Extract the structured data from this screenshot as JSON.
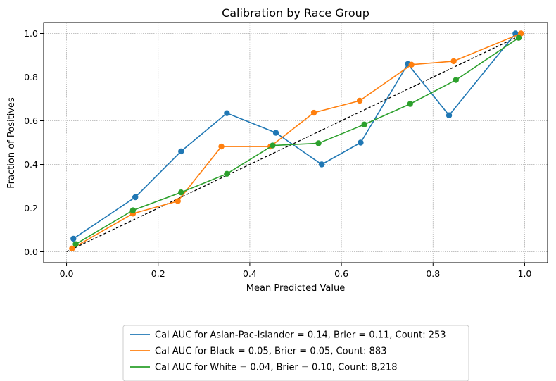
{
  "chart_data": {
    "type": "line",
    "title": "Calibration by Race Group",
    "xlabel": "Mean Predicted Value",
    "ylabel": "Fraction of Positives",
    "xlim": [
      -0.05,
      1.05
    ],
    "ylim": [
      -0.05,
      1.05
    ],
    "xticks": [
      0.0,
      0.2,
      0.4,
      0.6,
      0.8,
      1.0
    ],
    "yticks": [
      0.0,
      0.2,
      0.4,
      0.6,
      0.8,
      1.0
    ],
    "xtick_labels": [
      "0.0",
      "0.2",
      "0.4",
      "0.6",
      "0.8",
      "1.0"
    ],
    "ytick_labels": [
      "0.0",
      "0.2",
      "0.4",
      "0.6",
      "0.8",
      "1.0"
    ],
    "grid": true,
    "legend_position": "bottom-center",
    "reference_line": {
      "x": [
        0,
        1
      ],
      "y": [
        0,
        1
      ],
      "color": "#000000",
      "style": "dashed"
    },
    "series": [
      {
        "name": "Cal AUC for Asian-Pac-Islander = 0.14, Brier = 0.11, Count: 253",
        "color": "#1f77b4",
        "x": [
          0.015,
          0.15,
          0.25,
          0.35,
          0.457,
          0.557,
          0.642,
          0.745,
          0.835,
          0.98
        ],
        "y": [
          0.06,
          0.25,
          0.46,
          0.635,
          0.545,
          0.4,
          0.5,
          0.86,
          0.625,
          1.0
        ]
      },
      {
        "name": "Cal AUC for Black = 0.05, Brier = 0.05, Count: 883",
        "color": "#ff7f0e",
        "x": [
          0.012,
          0.145,
          0.243,
          0.338,
          0.445,
          0.54,
          0.64,
          0.753,
          0.845,
          0.992
        ],
        "y": [
          0.015,
          0.175,
          0.232,
          0.482,
          0.482,
          0.637,
          0.692,
          0.857,
          0.873,
          1.0
        ]
      },
      {
        "name": "Cal AUC for White = 0.04, Brier = 0.10, Count: 8,218",
        "color": "#2ca02c",
        "x": [
          0.02,
          0.145,
          0.25,
          0.35,
          0.45,
          0.55,
          0.65,
          0.75,
          0.85,
          0.987
        ],
        "y": [
          0.035,
          0.19,
          0.272,
          0.357,
          0.487,
          0.497,
          0.583,
          0.677,
          0.787,
          0.98
        ]
      }
    ]
  }
}
